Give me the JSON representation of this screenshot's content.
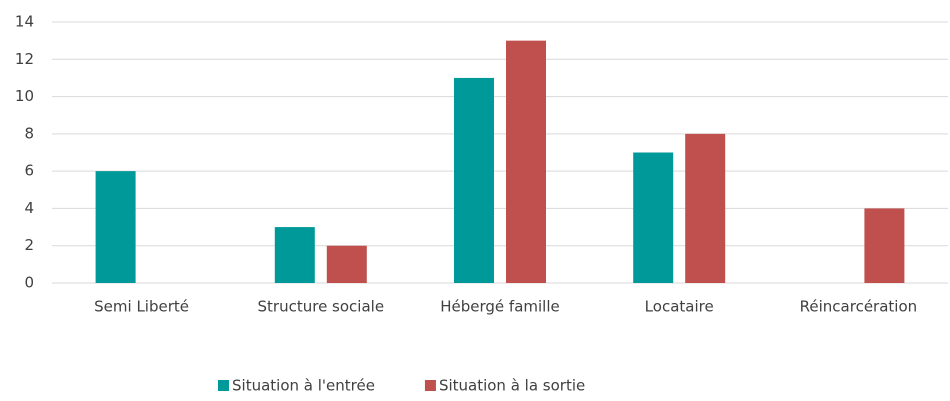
{
  "chart_data": {
    "type": "bar",
    "categories": [
      "Semi Liberté",
      "Structure sociale",
      "Hébergé famille",
      "Locataire",
      "Réincarcération"
    ],
    "series": [
      {
        "name": "Situation à l'entrée",
        "color": "#009999",
        "values": [
          6,
          3,
          11,
          7,
          0
        ]
      },
      {
        "name": "Situation à la sortie",
        "color": "#c0504d",
        "values": [
          0,
          2,
          13,
          8,
          4
        ]
      }
    ],
    "ylim": [
      0,
      14
    ],
    "yticks": [
      0,
      2,
      4,
      6,
      8,
      10,
      12,
      14
    ],
    "grid": true,
    "legend": "bottom"
  }
}
